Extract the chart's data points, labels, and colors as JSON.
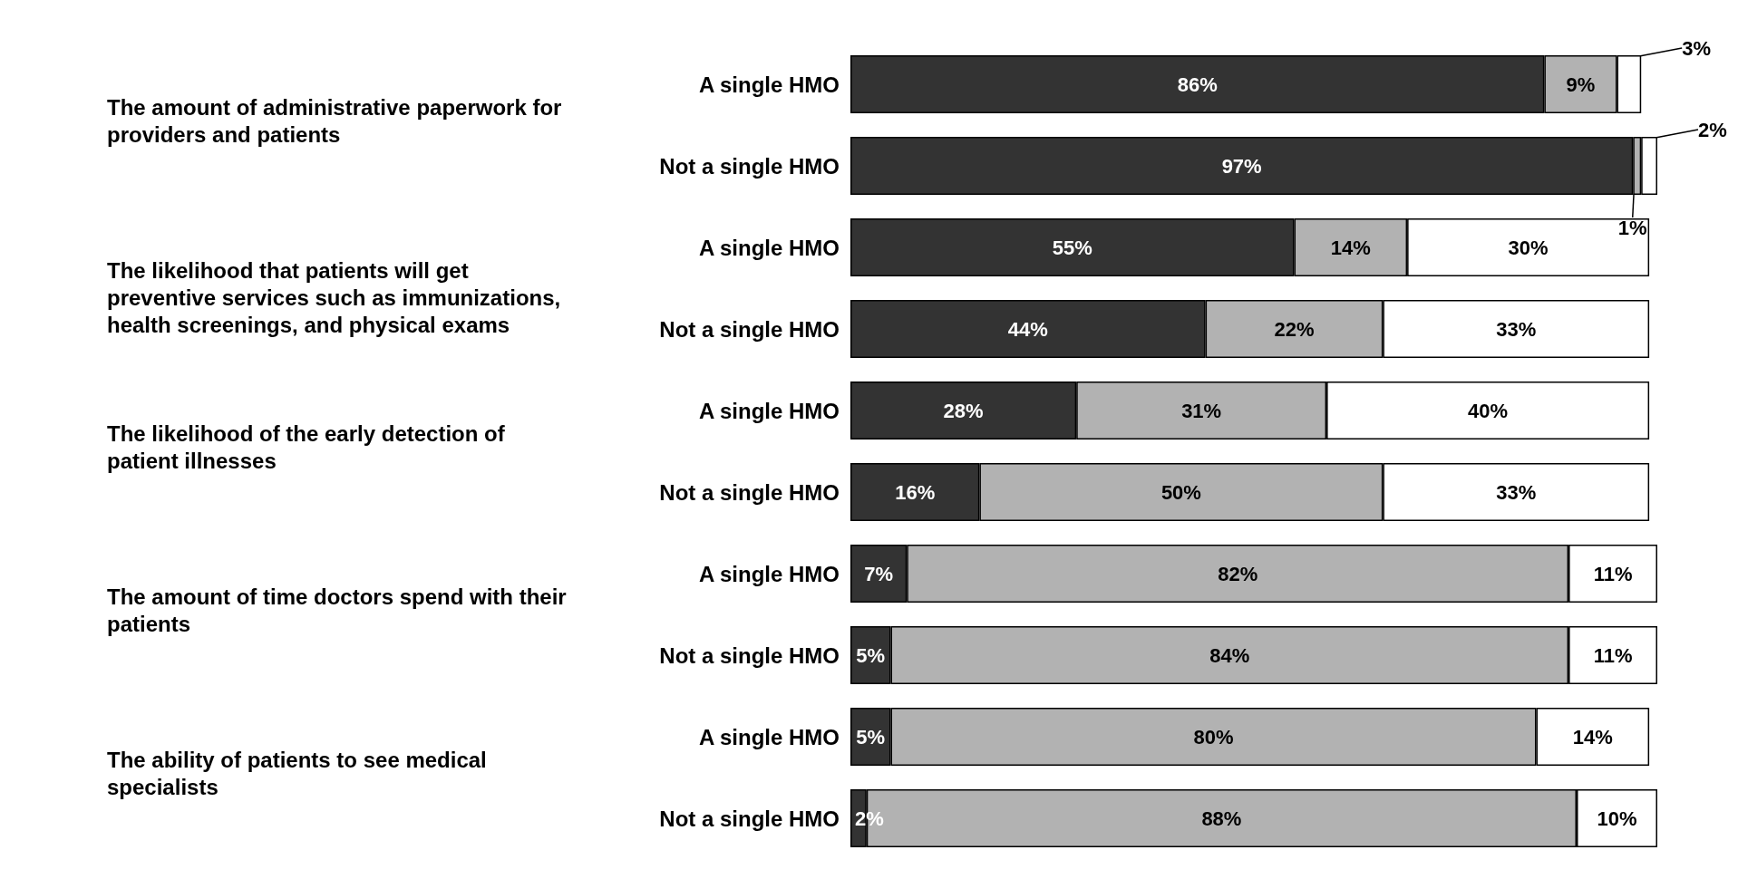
{
  "chart_data": {
    "type": "bar",
    "orientation": "horizontal",
    "stacked": true,
    "tick_labels": "y",
    "xlim": [
      0,
      100
    ],
    "categories": [
      "A single HMO",
      "Not a single HMO",
      "A single HMO",
      "Not a single HMO",
      "A single HMO",
      "Not a single HMO",
      "A single HMO",
      "Not a single HMO",
      "A single HMO",
      "Not a single HMO"
    ],
    "series": [
      {
        "color": "#333333",
        "values": [
          86,
          97,
          55,
          44,
          28,
          16,
          7,
          5,
          5,
          2
        ],
        "value_labels": [
          "86%",
          "97%",
          "55%",
          "44%",
          "28%",
          "16%",
          "7%",
          "5%",
          "5%",
          "2%"
        ]
      },
      {
        "color": "#b2b2b2",
        "values": [
          9,
          1,
          14,
          22,
          31,
          50,
          82,
          84,
          80,
          88
        ],
        "value_labels": [
          "9%",
          "1%",
          "14%",
          "22%",
          "31%",
          "50%",
          "82%",
          "84%",
          "80%",
          "88%"
        ]
      },
      {
        "color": "#ffffff",
        "values": [
          3,
          2,
          30,
          33,
          40,
          33,
          11,
          11,
          14,
          10
        ],
        "value_labels": [
          "3%",
          "2%",
          "30%",
          "33%",
          "40%",
          "33%",
          "11%",
          "11%",
          "14%",
          "10%"
        ]
      }
    ],
    "annotations": [
      "The amount of administrative paperwork for providers and patients",
      "The likelihood that patients will get preventive services such as immunizations, health screenings, and physical exams",
      "The likelihood of the early detection of patient illnesses",
      "The amount of time doctors spend with their patients",
      "The ability of patients to see medical specialists"
    ]
  }
}
